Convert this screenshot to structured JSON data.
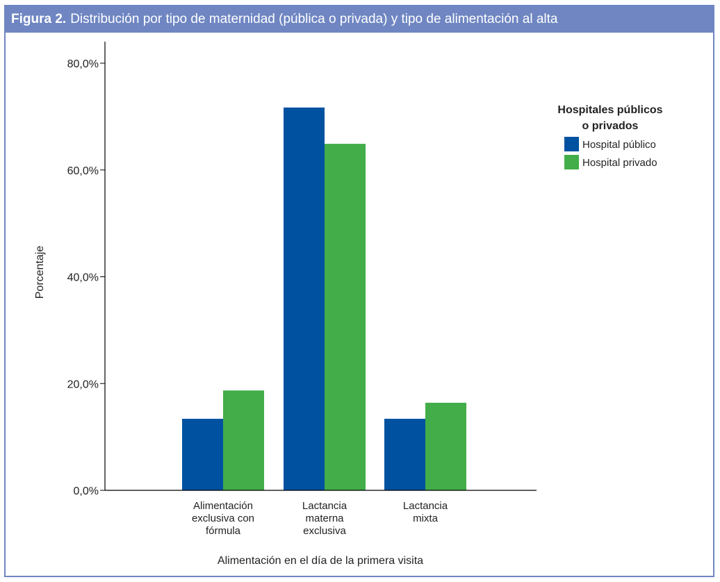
{
  "figure": {
    "label": "Figura 2.",
    "title": "Distribución por tipo de maternidad (pública o privada) y tipo de alimentación al alta"
  },
  "chart_data": {
    "type": "bar",
    "categories": [
      [
        "Alimentación",
        "exclusiva con",
        "fórmula"
      ],
      [
        "Lactancia",
        "materna",
        "exclusiva"
      ],
      [
        "Lactancia",
        "mixta"
      ]
    ],
    "series": [
      {
        "name": "Hospital público",
        "color": "#0052a0",
        "values": [
          13.4,
          71.7,
          13.4
        ]
      },
      {
        "name": "Hospital privado",
        "color": "#42ad49",
        "values": [
          18.7,
          64.9,
          16.4
        ]
      }
    ],
    "xlabel": "Alimentación en el día de la primera visita",
    "ylabel": "Porcentaje",
    "ylim": [
      0,
      80
    ],
    "yticks": [
      "0,0%",
      "20,0%",
      "40,0%",
      "60,0%",
      "80,0%"
    ],
    "legend": {
      "title": [
        "Hospitales públicos",
        "o privados"
      ],
      "position": "right"
    },
    "grid": false
  }
}
